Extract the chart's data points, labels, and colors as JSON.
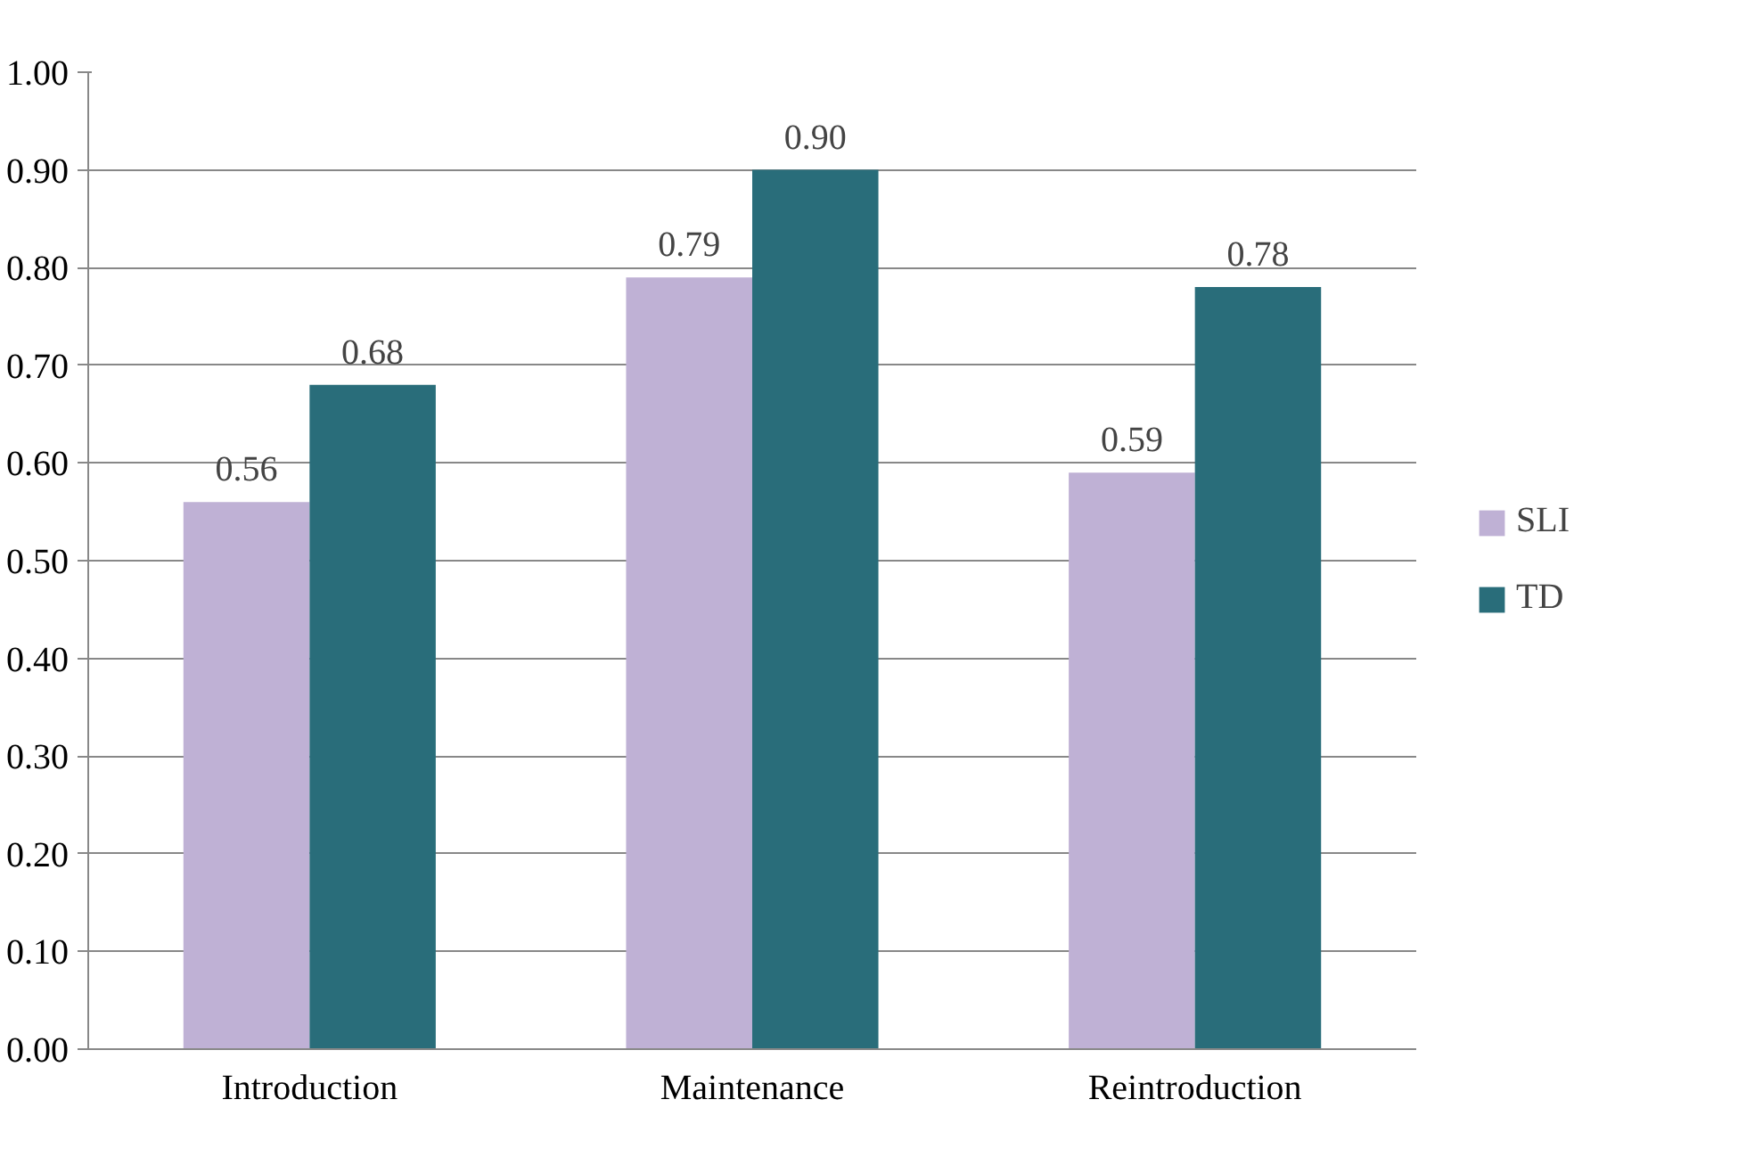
{
  "chart_data": {
    "type": "bar",
    "categories": [
      "Introduction",
      "Maintenance",
      "Reintroduction"
    ],
    "series": [
      {
        "name": "SLI",
        "color": "#bfb1d5",
        "values": [
          0.56,
          0.79,
          0.59
        ],
        "value_labels": [
          "0.56",
          "0.79",
          "0.59"
        ]
      },
      {
        "name": "TD",
        "color": "#296d7a",
        "values": [
          0.68,
          0.9,
          0.78
        ],
        "value_labels": [
          "0.68",
          "0.90",
          "0.78"
        ]
      }
    ],
    "ylim": [
      0,
      1
    ],
    "yticks": [
      {
        "value": 0,
        "label": "0.00"
      },
      {
        "value": 0.1,
        "label": "0.10"
      },
      {
        "value": 0.2,
        "label": "0.20"
      },
      {
        "value": 0.3,
        "label": "0.30"
      },
      {
        "value": 0.4,
        "label": "0.40"
      },
      {
        "value": 0.5,
        "label": "0.50"
      },
      {
        "value": 0.6,
        "label": "0.60"
      },
      {
        "value": 0.7,
        "label": "0.70"
      },
      {
        "value": 0.8,
        "label": "0.80"
      },
      {
        "value": 0.9,
        "label": "0.90"
      },
      {
        "value": 1,
        "label": "1.00"
      }
    ],
    "grid": "y",
    "legend": "right"
  }
}
